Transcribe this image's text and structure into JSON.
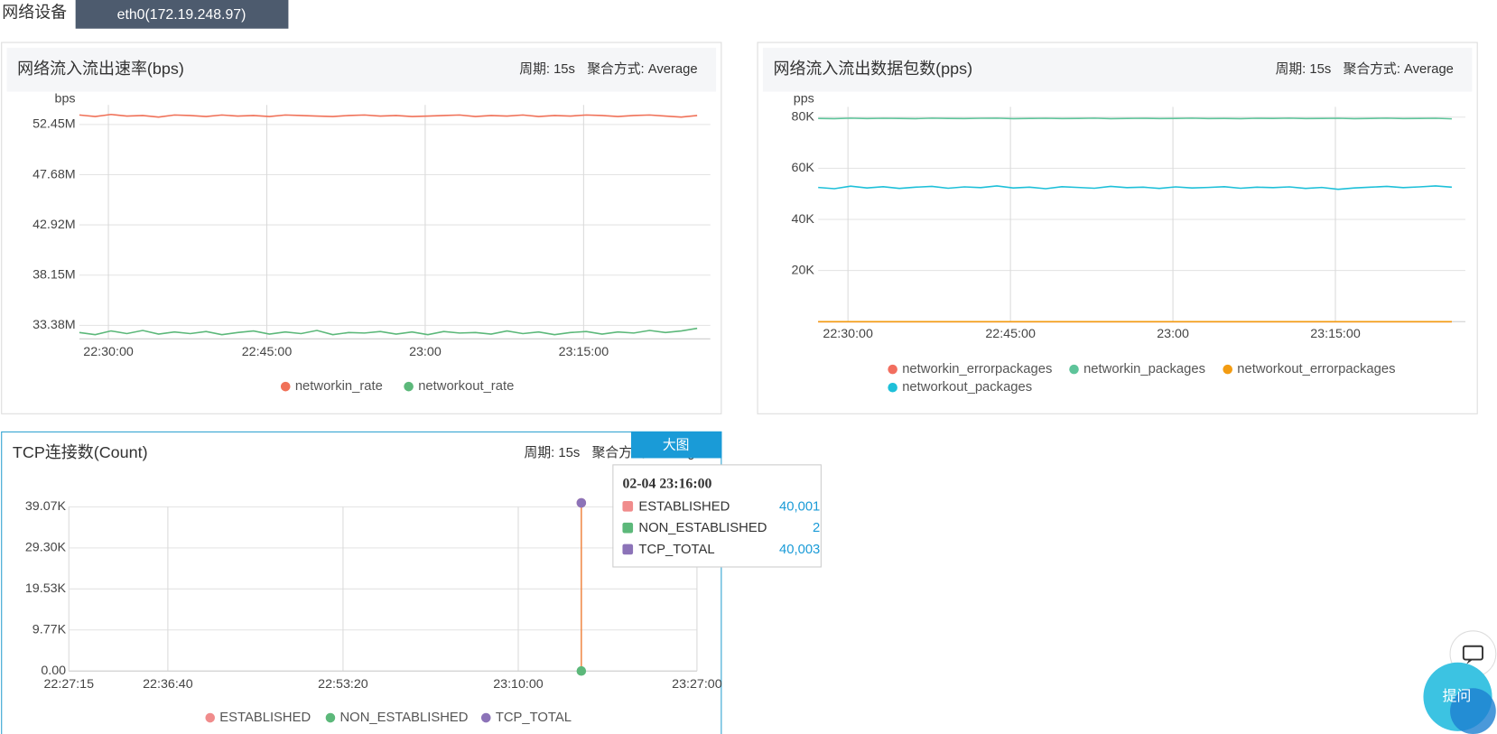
{
  "header": {
    "device_label": "网络设备",
    "device": "eth0(172.19.248.97)",
    "ask": "提问"
  },
  "chart_data": [
    {
      "type": "line",
      "title": "网络流入流出速率(bps)",
      "period": "周期: 15s",
      "aggregation": "聚合方式: Average",
      "y_unit": "bps",
      "x": [
        "22:27:15",
        "22:28:45",
        "22:30:15",
        "22:31:45",
        "22:33:15",
        "22:34:45",
        "22:36:15",
        "22:37:45",
        "22:39:15",
        "22:40:45",
        "22:42:15",
        "22:43:45",
        "22:45:15",
        "22:46:45",
        "22:48:15",
        "22:49:45",
        "22:51:15",
        "22:52:45",
        "22:54:15",
        "22:55:45",
        "22:57:15",
        "22:58:45",
        "23:00:15",
        "23:01:45",
        "23:03:15",
        "23:04:45",
        "23:06:15",
        "23:07:45",
        "23:09:15",
        "23:10:45",
        "23:12:15",
        "23:13:45",
        "23:15:15",
        "23:16:45",
        "23:18:15",
        "23:19:45",
        "23:21:15",
        "23:22:45",
        "23:24:15",
        "23:25:45"
      ],
      "xlim": [
        "22:27:15",
        "23:27:00"
      ],
      "xticks": [
        "22:30:00",
        "22:45:00",
        {
          "value": "23:00:00",
          "label": "23:00"
        },
        "23:15:00"
      ],
      "ylim": [
        32100000,
        54300000
      ],
      "yticks": [
        {
          "value": 33380000,
          "label": "33.38M"
        },
        {
          "value": 38150000,
          "label": "38.15M"
        },
        {
          "value": 42920000,
          "label": "42.92M"
        },
        {
          "value": 47680000,
          "label": "47.68M"
        },
        {
          "value": 52450000,
          "label": "52.45M"
        }
      ],
      "grid": true,
      "series": [
        {
          "name": "networkin_rate",
          "color": "#f07158",
          "values": [
            53350000,
            53200000,
            53400000,
            53250000,
            53300000,
            53150000,
            53350000,
            53300000,
            53200000,
            53350000,
            53250000,
            53300000,
            53200000,
            53350000,
            53300000,
            53250000,
            53200000,
            53300000,
            53350000,
            53250000,
            53300000,
            53200000,
            53250000,
            53300000,
            53350000,
            53200000,
            53300000,
            53250000,
            53350000,
            53200000,
            53300000,
            53250000,
            53350000,
            53300000,
            53200000,
            53300000,
            53350000,
            53250000,
            53150000,
            53300000
          ]
        },
        {
          "name": "networkout_rate",
          "color": "#5cb87a",
          "values": [
            32700000,
            32500000,
            32850000,
            32600000,
            32900000,
            32550000,
            32750000,
            32600000,
            32800000,
            32500000,
            32700000,
            32850000,
            32550000,
            32750000,
            32600000,
            32900000,
            32500000,
            32700000,
            32650000,
            32800000,
            32550000,
            32750000,
            32500000,
            32800000,
            32650000,
            32700000,
            32550000,
            32850000,
            32600000,
            32750000,
            32500000,
            32700000,
            32800000,
            32550000,
            32750000,
            32650000,
            32900000,
            32700000,
            32850000,
            33100000
          ]
        }
      ]
    },
    {
      "type": "line",
      "title": "网络流入流出数据包数(pps)",
      "period": "周期: 15s",
      "aggregation": "聚合方式: Average",
      "y_unit": "pps",
      "x": [
        "22:27:15",
        "22:28:45",
        "22:30:15",
        "22:31:45",
        "22:33:15",
        "22:34:45",
        "22:36:15",
        "22:37:45",
        "22:39:15",
        "22:40:45",
        "22:42:15",
        "22:43:45",
        "22:45:15",
        "22:46:45",
        "22:48:15",
        "22:49:45",
        "22:51:15",
        "22:52:45",
        "22:54:15",
        "22:55:45",
        "22:57:15",
        "22:58:45",
        "23:00:15",
        "23:01:45",
        "23:03:15",
        "23:04:45",
        "23:06:15",
        "23:07:45",
        "23:09:15",
        "23:10:45",
        "23:12:15",
        "23:13:45",
        "23:15:15",
        "23:16:45",
        "23:18:15",
        "23:19:45",
        "23:21:15",
        "23:22:45",
        "23:24:15",
        "23:25:45"
      ],
      "xlim": [
        "22:27:15",
        "23:27:00"
      ],
      "xticks": [
        "22:30:00",
        "22:45:00",
        {
          "value": "23:00:00",
          "label": "23:00"
        },
        "23:15:00"
      ],
      "ylim": [
        0,
        84000
      ],
      "yticks": [
        {
          "value": 20000,
          "label": "20K"
        },
        {
          "value": 40000,
          "label": "40K"
        },
        {
          "value": 60000,
          "label": "60K"
        },
        {
          "value": 80000,
          "label": "80K"
        }
      ],
      "grid": true,
      "series": [
        {
          "name": "networkin_errorpackages",
          "color": "#f26e5f",
          "values": [
            0,
            0,
            0,
            0,
            0,
            0,
            0,
            0,
            0,
            0,
            0,
            0,
            0,
            0,
            0,
            0,
            0,
            0,
            0,
            0,
            0,
            0,
            0,
            0,
            0,
            0,
            0,
            0,
            0,
            0,
            0,
            0,
            0,
            0,
            0,
            0,
            0,
            0,
            0,
            0
          ]
        },
        {
          "name": "networkin_packages",
          "color": "#5ec49a",
          "values": [
            79500,
            79400,
            79600,
            79450,
            79550,
            79500,
            79400,
            79600,
            79500,
            79450,
            79550,
            79600,
            79400,
            79500,
            79550,
            79450,
            79500,
            79600,
            79400,
            79500,
            79550,
            79450,
            79500,
            79600,
            79450,
            79500,
            79400,
            79550,
            79500,
            79600,
            79450,
            79500,
            79550,
            79400,
            79500,
            79600,
            79450,
            79500,
            79550,
            79350
          ]
        },
        {
          "name": "networkout_errorpackages",
          "color": "#f39c12",
          "values": [
            0,
            0,
            0,
            0,
            0,
            0,
            0,
            0,
            0,
            0,
            0,
            0,
            0,
            0,
            0,
            0,
            0,
            0,
            0,
            0,
            0,
            0,
            0,
            0,
            0,
            0,
            0,
            0,
            0,
            0,
            0,
            0,
            0,
            0,
            0,
            0,
            0,
            0,
            0,
            0
          ]
        },
        {
          "name": "networkout_packages",
          "color": "#1ec0d9",
          "values": [
            52500,
            52000,
            53000,
            52300,
            52800,
            52100,
            52600,
            52900,
            52200,
            52700,
            52400,
            53100,
            52300,
            52600,
            52000,
            52800,
            52500,
            52200,
            52900,
            52400,
            52600,
            52100,
            52700,
            52300,
            52500,
            52800,
            52200,
            52600,
            52400,
            52700,
            52100,
            52500,
            51800,
            52300,
            52600,
            52900,
            52400,
            52700,
            53100,
            52600
          ]
        }
      ]
    },
    {
      "type": "line",
      "title": "TCP连接数(Count)",
      "period": "周期: 15s",
      "aggregation": "聚合方式: Average",
      "button": "大图",
      "tooltip_title": "02-04 23:16:00",
      "x": [
        "23:16:00"
      ],
      "xlim": [
        "22:27:15",
        "23:27:00"
      ],
      "xticks": [
        "22:27:15",
        "22:36:40",
        "22:53:20",
        "23:10:00",
        "23:27:00"
      ],
      "ylim": [
        0,
        39070
      ],
      "yticks": [
        {
          "value": 0,
          "label": "0.00"
        },
        {
          "value": 9770,
          "label": "9.77K"
        },
        {
          "value": 19530,
          "label": "19.53K"
        },
        {
          "value": 29300,
          "label": "29.30K"
        },
        {
          "value": 39070,
          "label": "39.07K"
        }
      ],
      "grid": true,
      "series": [
        {
          "name": "ESTABLISHED",
          "color": "#f08c8c",
          "values": [
            40001
          ],
          "value_labels": [
            "40,001"
          ]
        },
        {
          "name": "NON_ESTABLISHED",
          "color": "#5cb87a",
          "values": [
            2
          ],
          "value_labels": [
            "2"
          ]
        },
        {
          "name": "TCP_TOTAL",
          "color": "#8c73b8",
          "values": [
            40003
          ],
          "value_labels": [
            "40,003"
          ]
        }
      ]
    }
  ]
}
